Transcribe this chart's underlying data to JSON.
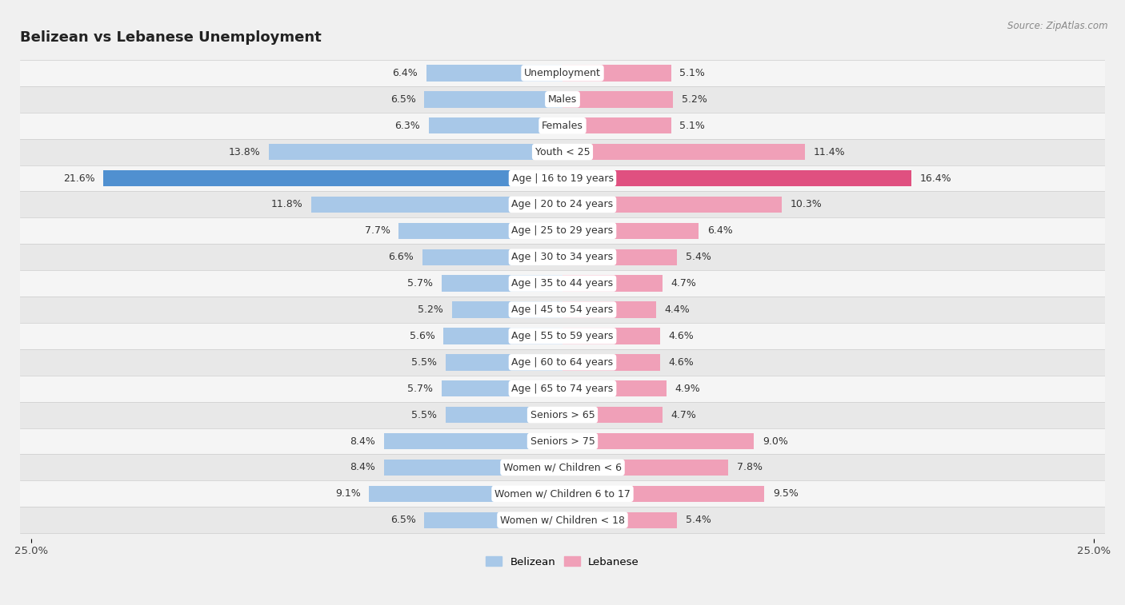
{
  "title": "Belizean vs Lebanese Unemployment",
  "source": "Source: ZipAtlas.com",
  "categories": [
    "Unemployment",
    "Males",
    "Females",
    "Youth < 25",
    "Age | 16 to 19 years",
    "Age | 20 to 24 years",
    "Age | 25 to 29 years",
    "Age | 30 to 34 years",
    "Age | 35 to 44 years",
    "Age | 45 to 54 years",
    "Age | 55 to 59 years",
    "Age | 60 to 64 years",
    "Age | 65 to 74 years",
    "Seniors > 65",
    "Seniors > 75",
    "Women w/ Children < 6",
    "Women w/ Children 6 to 17",
    "Women w/ Children < 18"
  ],
  "belizean": [
    6.4,
    6.5,
    6.3,
    13.8,
    21.6,
    11.8,
    7.7,
    6.6,
    5.7,
    5.2,
    5.6,
    5.5,
    5.7,
    5.5,
    8.4,
    8.4,
    9.1,
    6.5
  ],
  "lebanese": [
    5.1,
    5.2,
    5.1,
    11.4,
    16.4,
    10.3,
    6.4,
    5.4,
    4.7,
    4.4,
    4.6,
    4.6,
    4.9,
    4.7,
    9.0,
    7.8,
    9.5,
    5.4
  ],
  "belizean_color": "#a8c8e8",
  "lebanese_color": "#f0a0b8",
  "belizean_highlight_color": "#5090d0",
  "lebanese_highlight_color": "#e05080",
  "bar_height": 0.62,
  "max_val": 25.0,
  "background_color": "#f0f0f0",
  "row_bg_even": "#f5f5f5",
  "row_bg_odd": "#e8e8e8",
  "title_fontsize": 13,
  "label_fontsize": 9,
  "value_fontsize": 9,
  "tick_fontsize": 9.5,
  "legend_labels": [
    "Belizean",
    "Lebanese"
  ],
  "pill_bg": "#ffffff",
  "pill_fontsize": 9
}
